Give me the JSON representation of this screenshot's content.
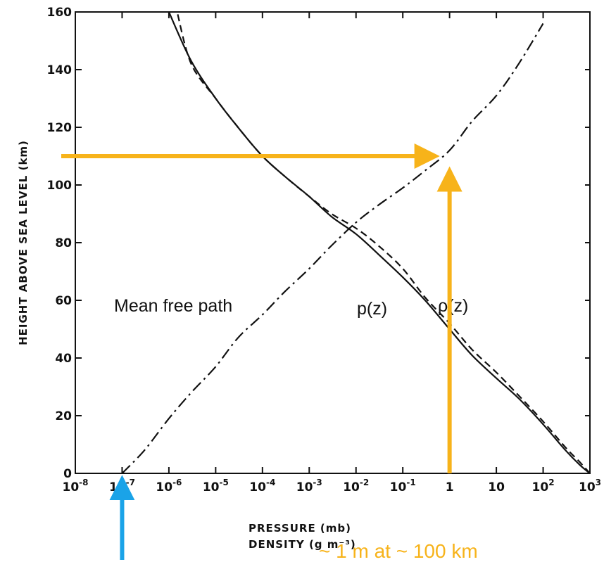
{
  "chart_data": {
    "type": "line",
    "x_scale": "log",
    "xlim": [
      1e-08,
      1000
    ],
    "ylim": [
      0,
      160
    ],
    "grid": false,
    "xlabel_lines": [
      "PRESSURE (mb)",
      "DENSITY (g m⁻³)"
    ],
    "ylabel": "HEIGHT ABOVE SEA LEVEL (km)",
    "y_ticks": [
      {
        "value": 0,
        "label": "0"
      },
      {
        "value": 20,
        "label": "20"
      },
      {
        "value": 40,
        "label": "40"
      },
      {
        "value": 60,
        "label": "60"
      },
      {
        "value": 80,
        "label": "80"
      },
      {
        "value": 100,
        "label": "100"
      },
      {
        "value": 120,
        "label": "120"
      },
      {
        "value": 140,
        "label": "140"
      },
      {
        "value": 160,
        "label": "160"
      }
    ],
    "x_ticks": [
      {
        "value": 1e-08,
        "base": "10",
        "exp": "-8"
      },
      {
        "value": 1e-07,
        "base": "10",
        "exp": "-7"
      },
      {
        "value": 1e-06,
        "base": "10",
        "exp": "-6"
      },
      {
        "value": 1e-05,
        "base": "10",
        "exp": "-5"
      },
      {
        "value": 0.0001,
        "base": "10",
        "exp": "-4"
      },
      {
        "value": 0.001,
        "base": "10",
        "exp": "-3"
      },
      {
        "value": 0.01,
        "base": "10",
        "exp": "-2"
      },
      {
        "value": 0.1,
        "base": "10",
        "exp": "-1"
      },
      {
        "value": 1,
        "base": "1",
        "exp": ""
      },
      {
        "value": 10,
        "base": "10",
        "exp": ""
      },
      {
        "value": 100,
        "base": "10",
        "exp": "2"
      },
      {
        "value": 1000,
        "base": "10",
        "exp": "3"
      }
    ],
    "series": [
      {
        "style": "solid",
        "x": [
          1000,
          600,
          300,
          100,
          30,
          10,
          3,
          1,
          0.3,
          0.1,
          0.03,
          0.01,
          0.003,
          0.001,
          0.0003,
          0.0001,
          3e-05,
          1e-05,
          3e-06,
          1e-06
        ],
        "y": [
          0,
          3,
          8,
          17,
          26,
          33,
          41,
          50,
          60,
          68,
          76,
          83,
          89,
          96,
          103,
          110,
          120,
          130,
          143,
          160
        ]
      },
      {
        "style": "dashed",
        "x": [
          1000,
          600,
          300,
          100,
          30,
          10,
          3,
          1,
          0.3,
          0.1,
          0.03,
          0.01,
          0.003,
          0.001,
          0.0003,
          0.0001,
          3e-05,
          1e-05,
          3e-06,
          1.5e-06
        ],
        "y": [
          0,
          4,
          9,
          18,
          27,
          35,
          43,
          52,
          61,
          71,
          79,
          85,
          90,
          96,
          103,
          110,
          120,
          130,
          142,
          160
        ]
      },
      {
        "style": "dash-dot",
        "x": [
          1e-07,
          3e-07,
          1e-06,
          3e-06,
          1e-05,
          3e-05,
          0.0001,
          0.0003,
          0.001,
          0.003,
          0.01,
          0.03,
          0.1,
          0.3,
          1,
          3,
          10,
          30,
          100
        ],
        "y": [
          0,
          8,
          19,
          28,
          37,
          47,
          55,
          63,
          71,
          79,
          87,
          93,
          99,
          105,
          112,
          122,
          131,
          142,
          156
        ]
      }
    ],
    "annotations": {
      "mean_free_path": "Mean free path",
      "pz_1": "p(z)",
      "pz_2": "ρ(z)",
      "note": "~ 1 m at ~ 100 km"
    },
    "overlay_arrows": [
      {
        "color": "#f7b31a",
        "from": {
          "x": 5e-09,
          "y": 110
        },
        "to": {
          "x": 0.5,
          "y": 110
        }
      },
      {
        "color": "#f7b31a",
        "from": {
          "x": 1,
          "y": 0
        },
        "to": {
          "x": 1,
          "y": 105
        }
      },
      {
        "color": "#1aa3e8",
        "from": {
          "x": 1e-07,
          "y": -30
        },
        "to": {
          "x": 1e-07,
          "y": -2
        }
      }
    ],
    "colors": {
      "axis": "#111111",
      "curve": "#111111",
      "arrow_orange": "#f7b31a",
      "arrow_blue": "#1aa3e8"
    }
  }
}
